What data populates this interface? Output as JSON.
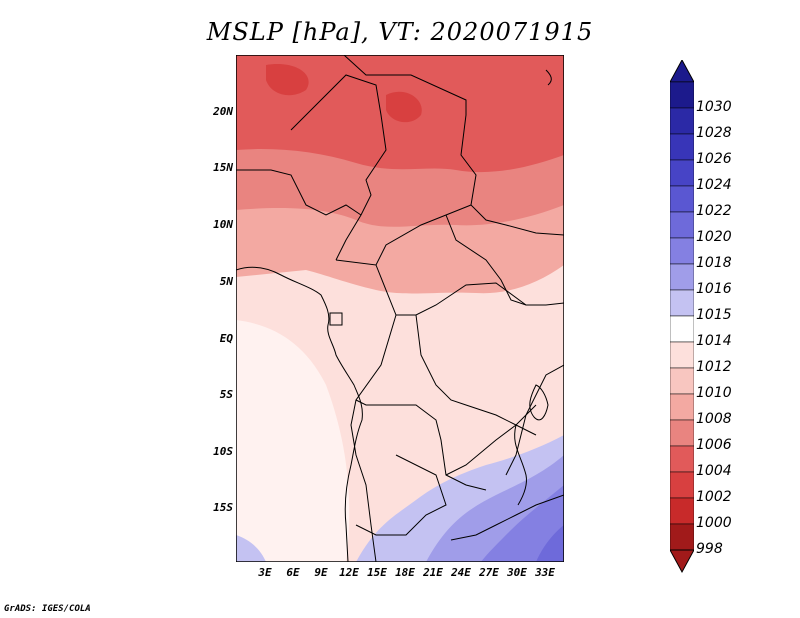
{
  "title": "MSLP [hPa], VT: 2020071915",
  "credit": "GrADS: IGES/COLA",
  "y_ticks": [
    "20N",
    "15N",
    "10N",
    "5N",
    "EQ",
    "5S",
    "10S",
    "15S"
  ],
  "x_ticks": [
    "3E",
    "6E",
    "9E",
    "12E",
    "15E",
    "18E",
    "21E",
    "24E",
    "27E",
    "30E",
    "33E"
  ],
  "colorbar": {
    "labels": [
      "1030",
      "1028",
      "1026",
      "1024",
      "1022",
      "1020",
      "1018",
      "1016",
      "1015",
      "1014",
      "1012",
      "1010",
      "1008",
      "1006",
      "1004",
      "1002",
      "1000",
      "998"
    ],
    "colors": [
      "#1c1a8c",
      "#2b29a6",
      "#3835b8",
      "#4744c6",
      "#5a57d2",
      "#6e6ada",
      "#8480e2",
      "#a09de9",
      "#c4c2f2",
      "#ffffff",
      "#fde0dc",
      "#f8c6c0",
      "#f3a9a2",
      "#e98480",
      "#e15a5a",
      "#d84040",
      "#c82a2a",
      "#a11a1a"
    ]
  }
}
